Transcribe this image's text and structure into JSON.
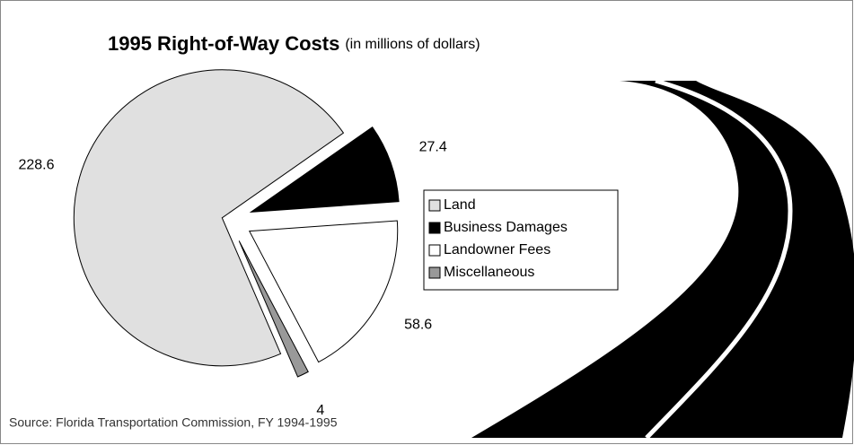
{
  "chart_data": {
    "type": "pie",
    "title": "1995 Right-of-Way Costs",
    "subtitle": "(in millions of dollars)",
    "categories": [
      "Land",
      "Business Damages",
      "Landowner Fees",
      "Miscellaneous"
    ],
    "values": [
      228.6,
      27.4,
      58.6,
      4
    ],
    "colors": [
      "#e0e0e0",
      "#000000",
      "#ffffff",
      "#999999"
    ],
    "legend": "right",
    "source": "Source: Florida Transportation Commission, FY 1994-1995"
  }
}
